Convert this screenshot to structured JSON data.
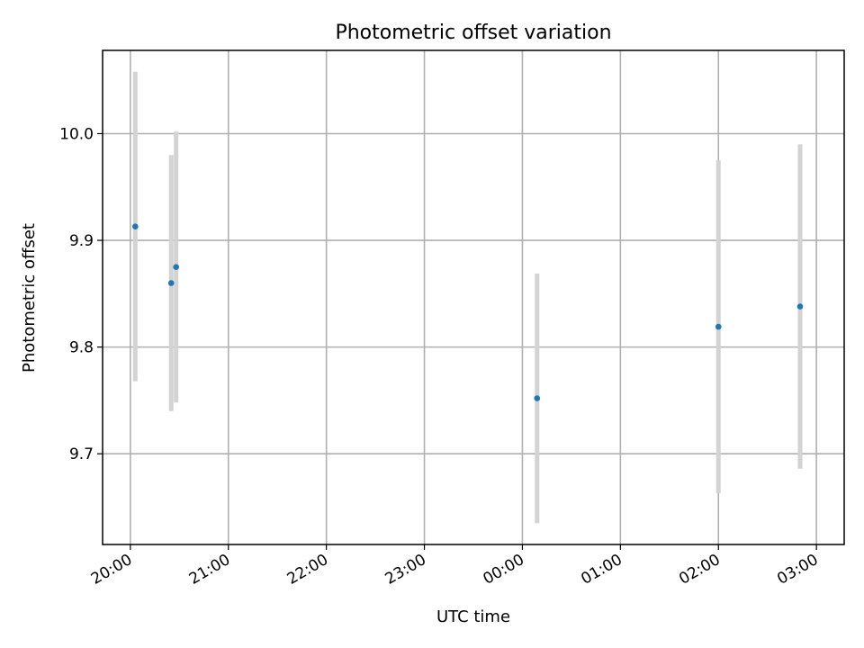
{
  "chart_data": {
    "type": "scatter",
    "title": "Photometric offset variation",
    "xlabel": "UTC time",
    "ylabel": "Photometric offset",
    "grid": true,
    "x_axis": {
      "kind": "time",
      "tick_labels": [
        "20:00",
        "21:00",
        "22:00",
        "23:00",
        "00:00",
        "01:00",
        "02:00",
        "03:00"
      ],
      "range": [
        "19:43",
        "03:17"
      ]
    },
    "y_axis": {
      "range": [
        9.615,
        10.078
      ],
      "ticks": [
        9.7,
        9.8,
        9.9,
        10.0
      ],
      "tick_labels": [
        "9.7",
        "9.8",
        "9.9",
        "10.0"
      ]
    },
    "series": [
      {
        "marker_color": "#1f77b4",
        "errorbar_color": "#d3d3d3",
        "points": [
          {
            "x": "20:03",
            "y": 9.913,
            "err": 0.145
          },
          {
            "x": "20:25",
            "y": 9.86,
            "err": 0.12
          },
          {
            "x": "20:28",
            "y": 9.875,
            "err": 0.127
          },
          {
            "x": "00:09",
            "y": 9.752,
            "err": 0.117
          },
          {
            "x": "02:00",
            "y": 9.819,
            "err": 0.156
          },
          {
            "x": "02:50",
            "y": 9.838,
            "err": 0.152
          }
        ]
      }
    ]
  }
}
